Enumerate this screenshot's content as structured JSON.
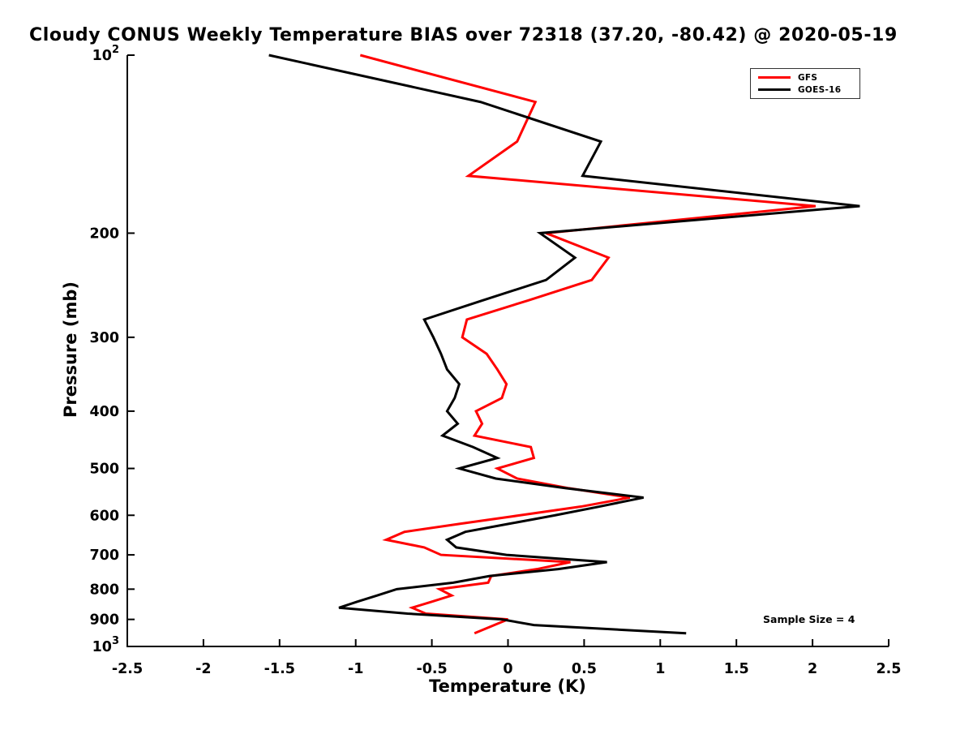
{
  "title": "Cloudy CONUS Weekly Temperature BIAS over 72318 (37.20, -80.42) @ 2020-05-19",
  "annotation": "Sample Size = 4",
  "legend": [
    {
      "label": "GFS",
      "color": "#ff0000"
    },
    {
      "label": "GOES-16",
      "color": "#000000"
    }
  ],
  "chart_data": {
    "type": "line",
    "title": "Cloudy CONUS Weekly Temperature BIAS over 72318 (37.20, -80.42) @ 2020-05-19",
    "xlabel": "Temperature (K)",
    "ylabel": "Pressure (mb)",
    "xlim": [
      -2.5,
      2.5
    ],
    "ylim": [
      100,
      1000
    ],
    "y_scale": "log",
    "y_inverted": true,
    "grid": false,
    "legend_position": "upper right",
    "annotation": "Sample Size = 4",
    "x_ticks": [
      -2.5,
      -2,
      -1.5,
      -1,
      -0.5,
      0,
      0.5,
      1,
      1.5,
      2,
      2.5
    ],
    "y_ticks": [
      {
        "value": 100,
        "label": "10^2"
      },
      {
        "value": 200,
        "label": "200"
      },
      {
        "value": 300,
        "label": "300"
      },
      {
        "value": 400,
        "label": "400"
      },
      {
        "value": 500,
        "label": "500"
      },
      {
        "value": 600,
        "label": "600"
      },
      {
        "value": 700,
        "label": "700"
      },
      {
        "value": 800,
        "label": "800"
      },
      {
        "value": 900,
        "label": "900"
      },
      {
        "value": 1000,
        "label": "10^3"
      }
    ],
    "series": [
      {
        "name": "GFS",
        "color": "#ff0000",
        "line_width": 3,
        "pressure_mb": [
          100,
          120,
          140,
          160,
          180,
          200,
          220,
          240,
          260,
          280,
          300,
          320,
          340,
          360,
          380,
          400,
          420,
          440,
          460,
          480,
          500,
          520,
          540,
          560,
          580,
          600,
          620,
          640,
          660,
          680,
          700,
          720,
          740,
          760,
          780,
          800,
          820,
          840,
          860,
          880,
          900,
          920,
          950
        ],
        "temperature_k": [
          -0.97,
          0.18,
          0.06,
          -0.26,
          2.02,
          0.25,
          0.66,
          0.55,
          0.13,
          -0.27,
          -0.3,
          -0.14,
          -0.07,
          -0.01,
          -0.04,
          -0.21,
          -0.17,
          -0.22,
          0.15,
          0.17,
          -0.07,
          0.06,
          0.4,
          0.8,
          0.48,
          0.08,
          -0.31,
          -0.68,
          -0.8,
          -0.55,
          -0.44,
          0.41,
          0.19,
          -0.11,
          -0.13,
          -0.45,
          -0.37,
          -0.5,
          -0.63,
          -0.54,
          0.0,
          -0.09,
          -0.22
        ]
      },
      {
        "name": "GOES-16",
        "color": "#000000",
        "line_width": 3,
        "pressure_mb": [
          100,
          120,
          140,
          160,
          180,
          200,
          220,
          240,
          260,
          280,
          300,
          320,
          340,
          360,
          380,
          400,
          420,
          440,
          460,
          480,
          500,
          520,
          540,
          560,
          580,
          600,
          620,
          640,
          660,
          680,
          700,
          720,
          740,
          760,
          780,
          800,
          820,
          840,
          860,
          880,
          900,
          920,
          950
        ],
        "temperature_k": [
          -1.57,
          -0.18,
          0.61,
          0.49,
          2.31,
          0.21,
          0.44,
          0.25,
          -0.17,
          -0.55,
          -0.49,
          -0.44,
          -0.4,
          -0.32,
          -0.35,
          -0.4,
          -0.33,
          -0.43,
          -0.23,
          -0.07,
          -0.32,
          -0.08,
          0.38,
          0.89,
          0.6,
          0.31,
          0.01,
          -0.28,
          -0.4,
          -0.34,
          -0.01,
          0.65,
          0.33,
          -0.12,
          -0.36,
          -0.73,
          -0.86,
          -0.99,
          -1.11,
          -0.66,
          -0.04,
          0.17,
          1.17
        ]
      }
    ]
  }
}
